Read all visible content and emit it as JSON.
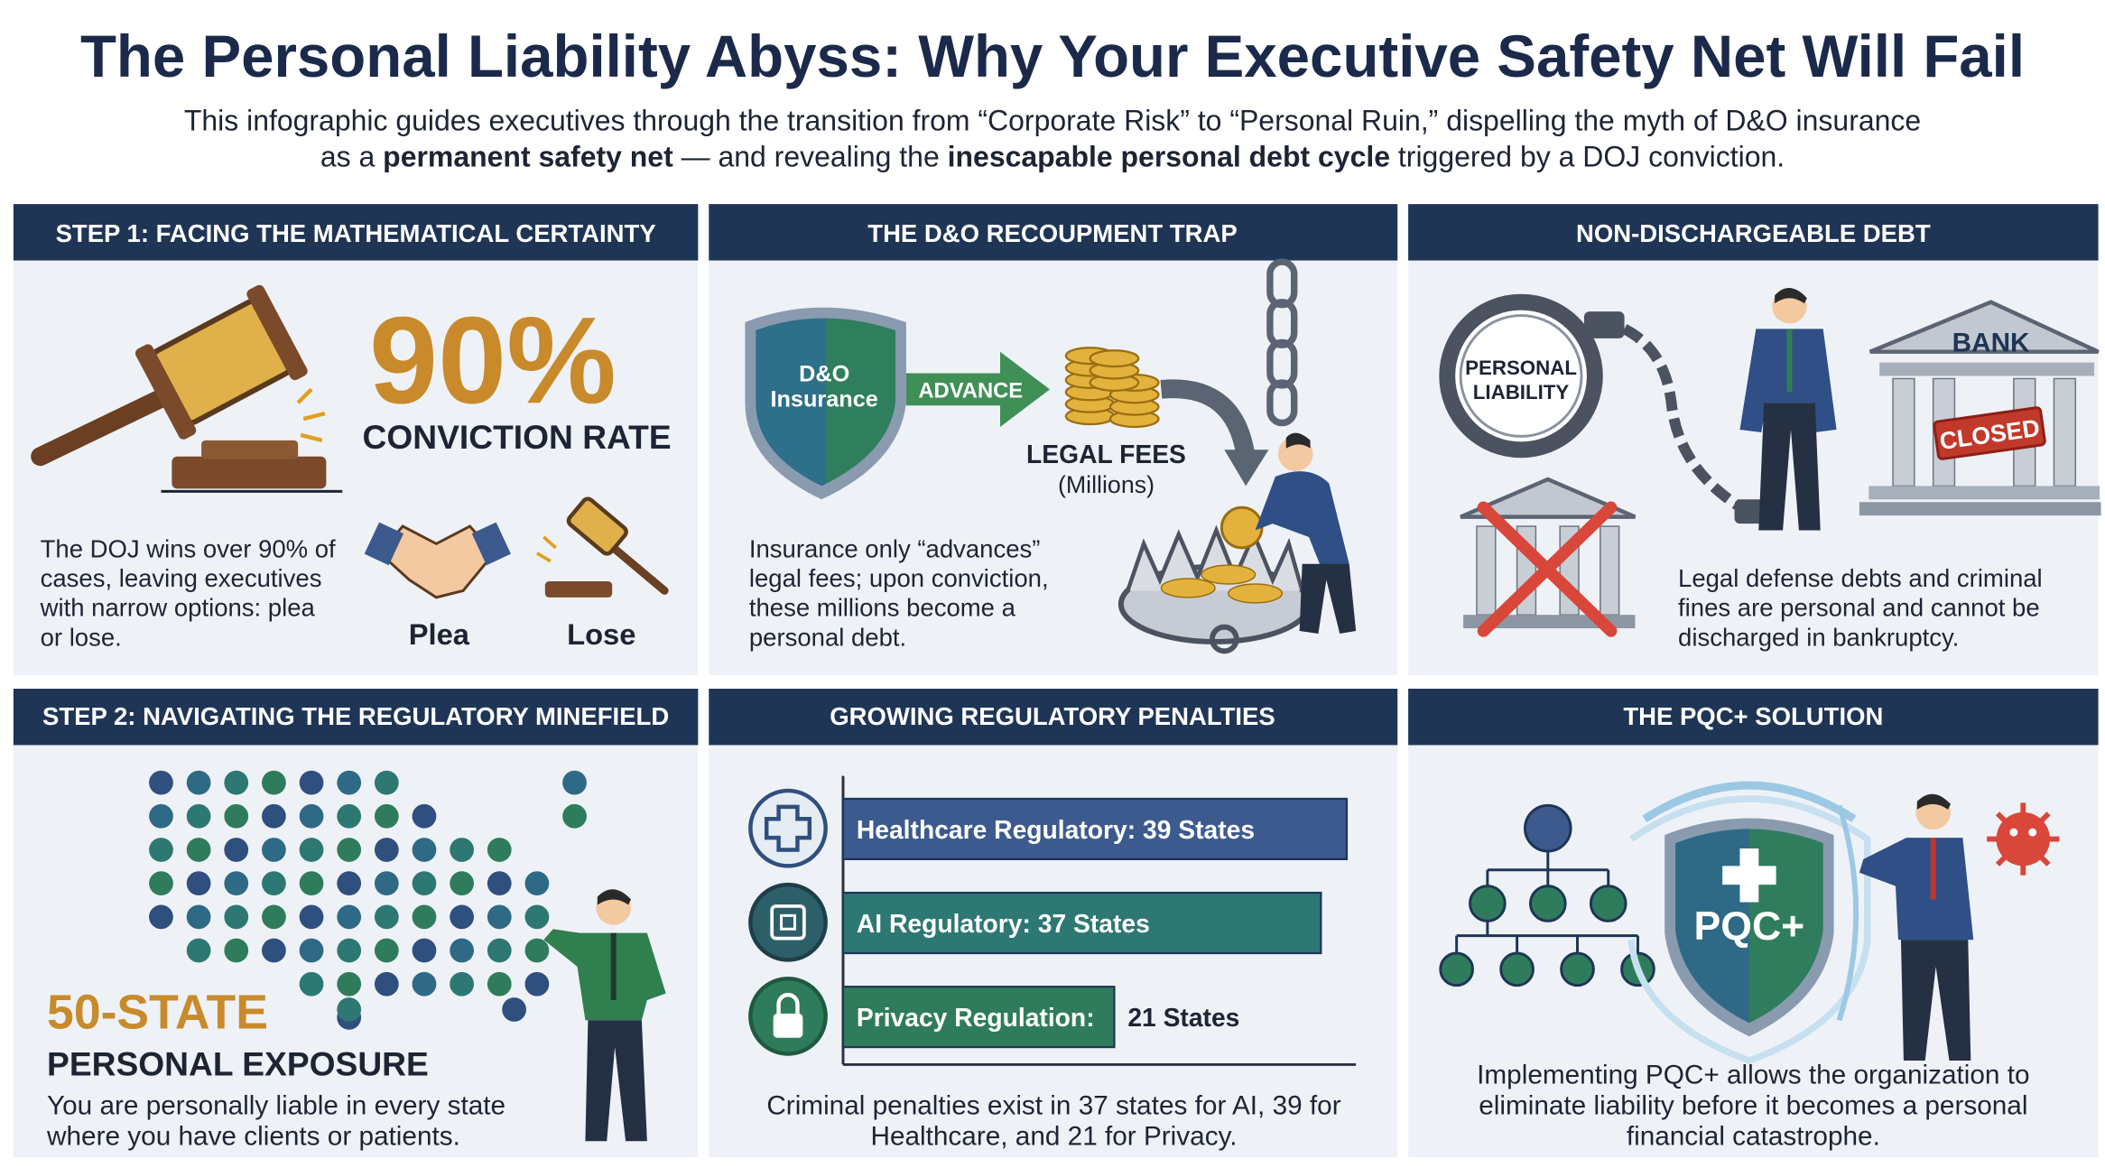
{
  "header": {
    "title": "The Personal Liability Abyss: Why Your Executive Safety Net Will Fail",
    "subtitle_line1": "This infographic guides executives through the transition from “Corporate Risk” to “Personal Ruin,” dispelling the myth of D&O insurance",
    "subtitle_line2": [
      "as a ",
      "permanent safety net",
      " — and revealing the ",
      "inescapable personal debt cycle",
      " triggered by a DOJ conviction."
    ]
  },
  "panels": [
    {
      "heading": "STEP 1: FACING THE MATHEMATICAL CERTAINTY",
      "stat": "90%",
      "stat_label": "CONVICTION RATE",
      "body": [
        "The DOJ wins over 90% of",
        "cases, leaving executives",
        "with narrow options: plea",
        "or lose."
      ],
      "options": [
        "Plea",
        "Lose"
      ]
    },
    {
      "heading": "THE D&O RECOUPMENT TRAP",
      "shield_label": [
        "D&O",
        "Insurance"
      ],
      "arrow_label": "ADVANCE",
      "fees_label": [
        "LEGAL FEES",
        "(Millions)"
      ],
      "body": [
        "Insurance only “advances”",
        "legal fees; upon conviction,",
        "these millions become a",
        "personal debt."
      ]
    },
    {
      "heading": "NON-DISCHARGEABLE DEBT",
      "cuff_label": [
        "PERSONAL",
        "LIABILITY"
      ],
      "bank_label": "BANK",
      "stamp_label": "CLOSED",
      "body": [
        "Legal defense debts and criminal",
        "fines are personal and cannot be",
        "discharged in bankruptcy."
      ]
    },
    {
      "heading": "STEP 2: NAVIGATING THE REGULATORY MINEFIELD",
      "stat": "50-STATE",
      "stat_label": "PERSONAL EXPOSURE",
      "body": [
        "You are personally liable in every state",
        "where you have clients or patients."
      ]
    },
    {
      "heading": "GROWING REGULATORY PENALTIES",
      "bars": [
        {
          "label": "Healthcare Regulatory: 39 States",
          "value": 39,
          "color": "#3c5a8e"
        },
        {
          "label": "AI Regulatory: 37 States",
          "value": 37,
          "color": "#2d7873"
        },
        {
          "label": "Privacy Regulation:",
          "outside_label": "21 States",
          "value": 21,
          "color": "#2f7c5c"
        }
      ],
      "body": [
        "Criminal penalties exist in 37 states for AI, 39 for",
        "Healthcare, and 21 for Privacy."
      ]
    },
    {
      "heading": "THE PQC+ SOLUTION",
      "shield_label": "PQC+",
      "body": [
        "Implementing PQC+ allows the organization to",
        "eliminate liability before it becomes a personal",
        "financial catastrophe."
      ]
    }
  ]
}
